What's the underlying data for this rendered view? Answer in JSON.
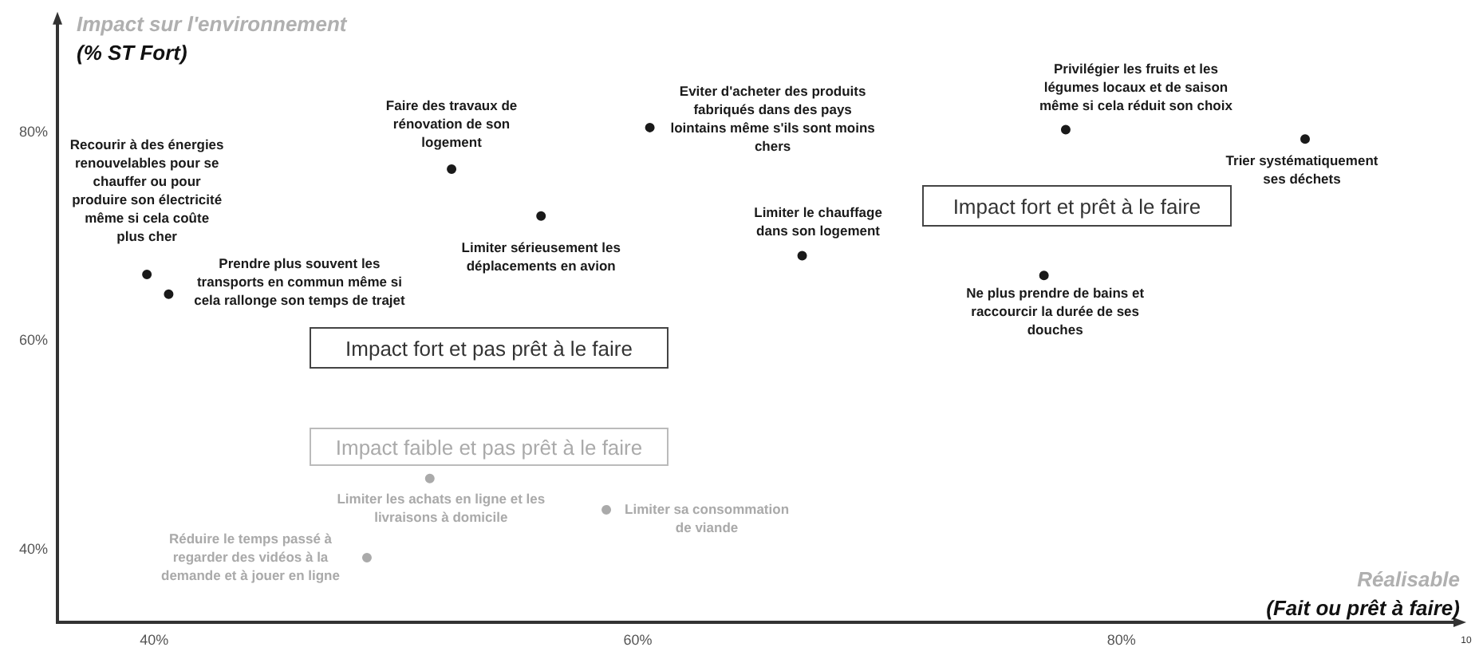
{
  "chart_data": {
    "type": "scatter",
    "xlabel": "Réalisable\n(Fait ou prêt à faire)",
    "ylabel": "Impact sur l'environnement\n(% ST Fort)",
    "xlim": [
      36,
      94
    ],
    "ylim": [
      33,
      91
    ],
    "xticks": [
      {
        "value": 40,
        "label": "40%"
      },
      {
        "value": 60,
        "label": "60%"
      },
      {
        "value": 80,
        "label": "80%"
      }
    ],
    "yticks": [
      {
        "value": 40,
        "label": "40%"
      },
      {
        "value": 60,
        "label": "60%"
      },
      {
        "value": 80,
        "label": "80%"
      }
    ],
    "marker": "circle",
    "series": [
      {
        "color": "#1a1a1a",
        "x": [
          39.7,
          40.6,
          52.3,
          56.0,
          60.5,
          66.8,
          77.7,
          87.6,
          76.8
        ],
        "values": [
          66.4,
          64.5,
          76.5,
          72.0,
          80.5,
          68.2,
          80.3,
          79.4,
          66.3
        ],
        "value_labels": [
          "Recourir à des énergies\nrenouvelables pour se\nchauffer ou pour\nproduire son électricité\nmême si cela coûte\nplus cher",
          "Prendre plus souvent les\ntransports en commun même si\ncela rallonge son temps de trajet",
          "Faire des travaux de\nrénovation de son\nlogement",
          "Limiter sérieusement les\ndéplacements en avion",
          "Eviter d'acheter des produits\nfabriqués dans des pays\nlointains même s'ils sont moins\nchers",
          "Limiter le chauffage\ndans son logement",
          "Privilégier les fruits et les\nlégumes locaux et de saison\nmême si cela réduit son choix",
          "Trier systématiquement\nses déchets",
          "Ne plus prendre de bains et\nraccourcir la durée de ses\ndouches"
        ]
      },
      {
        "color": "#aaaaaa",
        "x": [
          51.4,
          58.7,
          48.8
        ],
        "values": [
          46.8,
          43.8,
          39.2
        ],
        "value_labels": [
          "Limiter les achats en ligne et les\nlivraisons à domicile",
          "Limiter sa consommation\nde viande",
          "Réduire le temps passé à\nregarder des vidéos à la\ndemande et à jouer en ligne"
        ]
      }
    ],
    "annotations": [
      "Impact fort et prêt à le faire",
      "Impact fort et pas prêt à le faire",
      "Impact faible et pas prêt à le faire",
      "10"
    ]
  }
}
